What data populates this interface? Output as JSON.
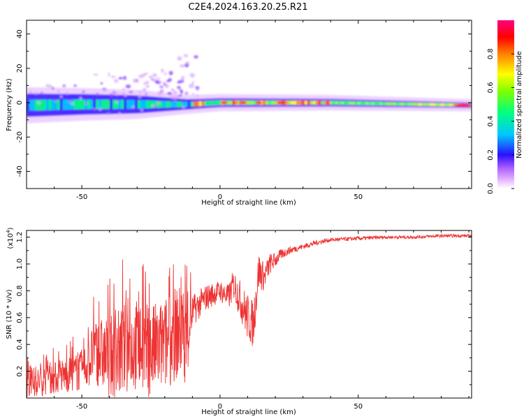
{
  "title": "C2E4.2024.163.20.25.R21",
  "chart_data": [
    {
      "type": "heatmap",
      "xlabel": "Height of straight line (km)",
      "ylabel": "Frequency (Hz)",
      "xlim": [
        -70,
        91
      ],
      "ylim": [
        -50,
        48
      ],
      "xticks": [
        "-50",
        "0",
        "50"
      ],
      "yticks": [
        "40",
        "20",
        "0",
        "-20",
        "-40"
      ],
      "xtick_values": [
        -50,
        0,
        50
      ],
      "ytick_values": [
        40,
        20,
        0,
        -20,
        -40
      ],
      "band": [
        {
          "x": -70,
          "center": -1.5,
          "halfwidth": 9
        },
        {
          "x": -50,
          "center": -1.0,
          "halfwidth": 8
        },
        {
          "x": -30,
          "center": -1.0,
          "halfwidth": 7
        },
        {
          "x": -12,
          "center": -1.0,
          "halfwidth": 4
        },
        {
          "x": 0,
          "center": 0.0,
          "halfwidth": 3.5
        },
        {
          "x": 40,
          "center": 0.0,
          "halfwidth": 3
        },
        {
          "x": 91,
          "center": -1.5,
          "halfwidth": 2
        }
      ],
      "colorbar": {
        "label": "Normalized spectral amplitude",
        "ticks": [
          "0.0",
          "0.2",
          "0.4",
          "0.6",
          "0.8"
        ],
        "tick_values": [
          0.0,
          0.2,
          0.4,
          0.6,
          0.8
        ],
        "range": [
          0,
          1
        ]
      }
    },
    {
      "type": "line",
      "xlabel": "Height of straight line (km)",
      "ylabel": "SNR (10 * v/v)",
      "yscale_label": "(x10",
      "yscale_exp": "4",
      "xlim": [
        -70,
        91
      ],
      "ylim": [
        0,
        1.25
      ],
      "xticks": [
        "-50",
        "0",
        "50"
      ],
      "yticks": [
        "0.2",
        "0.4",
        "0.6",
        "0.8",
        "1.0",
        "1.2"
      ],
      "xtick_values": [
        -50,
        0,
        50
      ],
      "ytick_values": [
        0.2,
        0.4,
        0.6,
        0.8,
        1.0,
        1.2
      ],
      "series": [
        {
          "color": "#ee3333",
          "x": [
            -70,
            -60,
            -50,
            -45,
            -40,
            -35,
            -30,
            -25,
            -20,
            -15,
            -12,
            -10,
            -5,
            0,
            3,
            5,
            8,
            10,
            12,
            14,
            16,
            18,
            20,
            22,
            25,
            30,
            35,
            40,
            50,
            60,
            70,
            80,
            91
          ],
          "y": [
            0.1,
            0.15,
            0.2,
            0.35,
            0.3,
            0.35,
            0.4,
            0.35,
            0.4,
            0.5,
            0.45,
            0.65,
            0.75,
            0.8,
            0.75,
            0.85,
            0.7,
            0.6,
            0.55,
            0.95,
            0.9,
            1.0,
            1.03,
            1.07,
            1.1,
            1.13,
            1.16,
            1.18,
            1.19,
            1.2,
            1.2,
            1.21,
            1.21
          ],
          "spread": [
            0.1,
            0.12,
            0.15,
            0.25,
            0.3,
            0.35,
            0.35,
            0.35,
            0.35,
            0.35,
            0.35,
            0.12,
            0.1,
            0.08,
            0.1,
            0.12,
            0.15,
            0.18,
            0.18,
            0.15,
            0.1,
            0.08,
            0.06,
            0.04,
            0.03,
            0.02,
            0.02,
            0.015,
            0.015,
            0.012,
            0.012,
            0.012,
            0.012
          ]
        }
      ]
    }
  ]
}
